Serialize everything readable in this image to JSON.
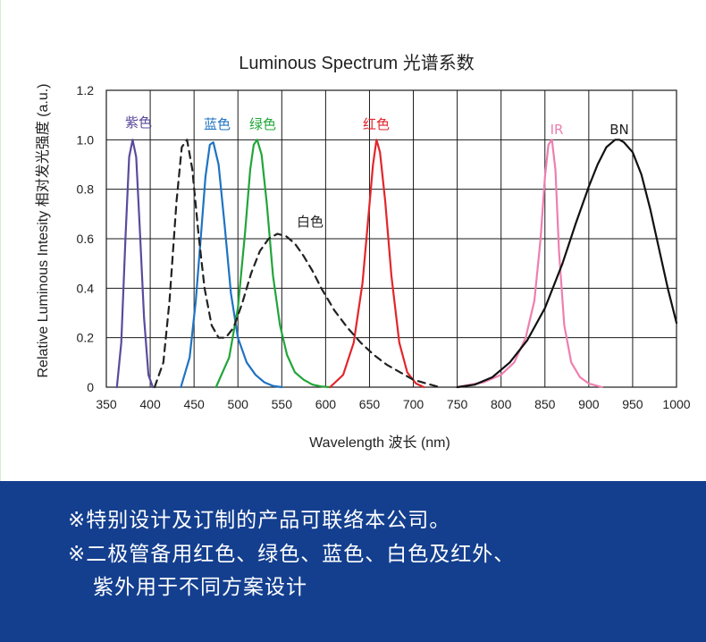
{
  "chart_data": {
    "type": "line",
    "title": "Luminous Spectrum 光谱系数",
    "xlabel": "Wavelength 波长 (nm)",
    "ylabel": "Relative Luminous Intesity 相对发光强度 (a.u.)",
    "xlim": [
      350,
      1000
    ],
    "ylim": [
      0,
      1.2
    ],
    "xticks": [
      "350",
      "400",
      "450",
      "500",
      "550",
      "600",
      "650",
      "700",
      "750",
      "800",
      "850",
      "900",
      "950",
      "1000"
    ],
    "yticks": [
      "0",
      "0.2",
      "0.4",
      "0.6",
      "0.8",
      "1.0",
      "1.2"
    ],
    "grid": true,
    "series": [
      {
        "name": "紫色",
        "color": "#5b4a9c",
        "style": "solid",
        "x": [
          362,
          367,
          372,
          376,
          380,
          384,
          388,
          393,
          398,
          403
        ],
        "y": [
          0.0,
          0.18,
          0.62,
          0.93,
          1.0,
          0.93,
          0.65,
          0.28,
          0.05,
          0.0
        ]
      },
      {
        "name": "蓝色",
        "color": "#1f73c2",
        "style": "solid",
        "x": [
          435,
          445,
          452,
          458,
          463,
          468,
          472,
          478,
          485,
          492,
          500,
          510,
          520,
          530,
          540,
          550
        ],
        "y": [
          0.0,
          0.12,
          0.35,
          0.62,
          0.85,
          0.98,
          0.99,
          0.9,
          0.65,
          0.38,
          0.2,
          0.1,
          0.05,
          0.02,
          0.005,
          0.0
        ]
      },
      {
        "name": "绿色",
        "color": "#22a53a",
        "style": "solid",
        "x": [
          475,
          490,
          500,
          508,
          514,
          518,
          522,
          527,
          533,
          540,
          548,
          556,
          565,
          575,
          585,
          595,
          605
        ],
        "y": [
          0.0,
          0.12,
          0.32,
          0.62,
          0.88,
          0.98,
          1.0,
          0.94,
          0.74,
          0.45,
          0.25,
          0.13,
          0.06,
          0.03,
          0.01,
          0.003,
          0.0
        ]
      },
      {
        "name": "红色",
        "color": "#e2262b",
        "style": "solid",
        "x": [
          605,
          620,
          632,
          642,
          649,
          654,
          658,
          662,
          668,
          675,
          684,
          693,
          703,
          712
        ],
        "y": [
          0.0,
          0.05,
          0.18,
          0.42,
          0.7,
          0.9,
          1.0,
          0.95,
          0.75,
          0.45,
          0.18,
          0.06,
          0.015,
          0.0
        ]
      },
      {
        "name": "白色",
        "color": "#222222",
        "style": "dashed",
        "x": [
          405,
          415,
          422,
          430,
          436,
          442,
          448,
          455,
          462,
          470,
          478,
          486,
          495,
          505,
          515,
          525,
          535,
          545,
          555,
          565,
          575,
          585,
          595,
          610,
          625,
          640,
          655,
          670,
          685,
          700,
          715,
          730
        ],
        "y": [
          0.0,
          0.1,
          0.35,
          0.75,
          0.97,
          1.0,
          0.88,
          0.62,
          0.4,
          0.25,
          0.2,
          0.2,
          0.24,
          0.34,
          0.46,
          0.55,
          0.6,
          0.62,
          0.61,
          0.58,
          0.53,
          0.47,
          0.4,
          0.31,
          0.24,
          0.18,
          0.13,
          0.09,
          0.06,
          0.03,
          0.015,
          0.0
        ]
      },
      {
        "name": "IR",
        "color": "#ee7fb0",
        "style": "solid",
        "x": [
          750,
          780,
          800,
          815,
          828,
          838,
          845,
          850,
          854,
          858,
          862,
          866,
          872,
          880,
          890,
          900,
          915
        ],
        "y": [
          0.0,
          0.02,
          0.05,
          0.1,
          0.2,
          0.35,
          0.6,
          0.85,
          0.98,
          1.0,
          0.88,
          0.55,
          0.25,
          0.1,
          0.04,
          0.015,
          0.0
        ]
      },
      {
        "name": "BN",
        "color": "#111111",
        "style": "solid",
        "x": [
          750,
          770,
          790,
          810,
          830,
          850,
          870,
          885,
          900,
          910,
          920,
          930,
          935,
          940,
          950,
          960,
          970,
          980,
          990,
          1000
        ],
        "y": [
          0.0,
          0.01,
          0.04,
          0.1,
          0.19,
          0.32,
          0.5,
          0.66,
          0.81,
          0.9,
          0.97,
          1.0,
          1.0,
          0.99,
          0.95,
          0.86,
          0.72,
          0.56,
          0.4,
          0.26
        ]
      }
    ]
  },
  "footer": {
    "line1": "※特别设计及订制的产品可联络本公司。",
    "line2": "※二极管备用红色、绿色、蓝色、白色及红外、",
    "line3": "紫外用于不同方案设计"
  }
}
